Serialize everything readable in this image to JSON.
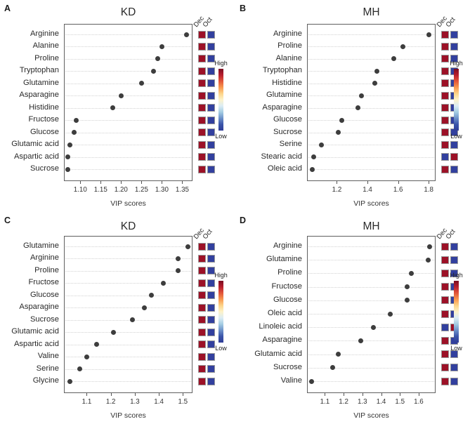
{
  "figure": {
    "background": "#ffffff",
    "colors": {
      "dot": "#3d3d3d",
      "grid": "#d2d2d2",
      "axis_box": "#606060",
      "text": "#222222",
      "cell_high": "#9c1127",
      "cell_low": "#32409e",
      "cell_border": "#9a9a9a"
    },
    "colorbar": {
      "high_label": "High",
      "low_label": "Low",
      "gradient": [
        "#7a0c21",
        "#b91f2e",
        "#e25639",
        "#f9984f",
        "#fdd488",
        "#fdf3c9",
        "#dcedf4",
        "#a5cde3",
        "#6d92c9",
        "#3b54a9",
        "#2f3d96"
      ]
    }
  },
  "chart_data": [
    {
      "type": "scatter",
      "panel": "A",
      "title": "KD",
      "xlabel": "VIP scores",
      "col_headers": [
        "Dec",
        "Oct"
      ],
      "legend_position": "right",
      "grid": "dotted-horizontal",
      "xlim": [
        1.06,
        1.375
      ],
      "x_ticks": [
        {
          "v": 1.1,
          "label": "1.10"
        },
        {
          "v": 1.15,
          "label": "1.15"
        },
        {
          "v": 1.2,
          "label": "1.20"
        },
        {
          "v": 1.25,
          "label": "1.25"
        },
        {
          "v": 1.3,
          "label": "1.30"
        },
        {
          "v": 1.35,
          "label": "1.35"
        }
      ],
      "rows": [
        {
          "name": "Arginine",
          "vip": 1.36,
          "dec": "high",
          "oct": "low"
        },
        {
          "name": "Alanine",
          "vip": 1.3,
          "dec": "high",
          "oct": "low"
        },
        {
          "name": "Proline",
          "vip": 1.29,
          "dec": "high",
          "oct": "low"
        },
        {
          "name": "Tryptophan",
          "vip": 1.28,
          "dec": "high",
          "oct": "low"
        },
        {
          "name": "Glutamine",
          "vip": 1.25,
          "dec": "high",
          "oct": "low"
        },
        {
          "name": "Asparagine",
          "vip": 1.2,
          "dec": "high",
          "oct": "low"
        },
        {
          "name": "Histidine",
          "vip": 1.18,
          "dec": "high",
          "oct": "low"
        },
        {
          "name": "Fructose",
          "vip": 1.09,
          "dec": "high",
          "oct": "low"
        },
        {
          "name": "Glucose",
          "vip": 1.085,
          "dec": "high",
          "oct": "low"
        },
        {
          "name": "Glutamic acid",
          "vip": 1.075,
          "dec": "high",
          "oct": "low"
        },
        {
          "name": "Aspartic acid",
          "vip": 1.07,
          "dec": "high",
          "oct": "low"
        },
        {
          "name": "Sucrose",
          "vip": 1.07,
          "dec": "high",
          "oct": "low"
        }
      ]
    },
    {
      "type": "scatter",
      "panel": "B",
      "title": "MH",
      "xlabel": "VIP scores",
      "col_headers": [
        "Dec",
        "Oct"
      ],
      "legend_position": "right",
      "grid": "dotted-horizontal",
      "xlim": [
        1.005,
        1.845
      ],
      "x_ticks": [
        {
          "v": 1.2,
          "label": "1.2"
        },
        {
          "v": 1.4,
          "label": "1.4"
        },
        {
          "v": 1.6,
          "label": "1.6"
        },
        {
          "v": 1.8,
          "label": "1.8"
        }
      ],
      "rows": [
        {
          "name": "Arginine",
          "vip": 1.8,
          "dec": "high",
          "oct": "low"
        },
        {
          "name": "Proline",
          "vip": 1.63,
          "dec": "high",
          "oct": "low"
        },
        {
          "name": "Alanine",
          "vip": 1.57,
          "dec": "high",
          "oct": "low"
        },
        {
          "name": "Tryptophan",
          "vip": 1.46,
          "dec": "high",
          "oct": "low"
        },
        {
          "name": "Histidine",
          "vip": 1.45,
          "dec": "high",
          "oct": "low"
        },
        {
          "name": "Glutamine",
          "vip": 1.36,
          "dec": "high",
          "oct": "low"
        },
        {
          "name": "Asparagine",
          "vip": 1.34,
          "dec": "high",
          "oct": "low"
        },
        {
          "name": "Glucose",
          "vip": 1.23,
          "dec": "high",
          "oct": "low"
        },
        {
          "name": "Sucrose",
          "vip": 1.21,
          "dec": "high",
          "oct": "low"
        },
        {
          "name": "Serine",
          "vip": 1.1,
          "dec": "high",
          "oct": "low"
        },
        {
          "name": "Stearic acid",
          "vip": 1.05,
          "dec": "low",
          "oct": "high"
        },
        {
          "name": "Oleic acid",
          "vip": 1.04,
          "dec": "high",
          "oct": "low"
        }
      ]
    },
    {
      "type": "scatter",
      "panel": "C",
      "title": "KD",
      "xlabel": "VIP scores",
      "col_headers": [
        "Dec",
        "Oct"
      ],
      "legend_position": "right",
      "grid": "dotted-horizontal",
      "xlim": [
        1.005,
        1.54
      ],
      "x_ticks": [
        {
          "v": 1.1,
          "label": "1.1"
        },
        {
          "v": 1.2,
          "label": "1.2"
        },
        {
          "v": 1.3,
          "label": "1.3"
        },
        {
          "v": 1.4,
          "label": "1.4"
        },
        {
          "v": 1.5,
          "label": "1.5"
        }
      ],
      "rows": [
        {
          "name": "Glutamine",
          "vip": 1.52,
          "dec": "high",
          "oct": "low"
        },
        {
          "name": "Arginine",
          "vip": 1.48,
          "dec": "high",
          "oct": "low"
        },
        {
          "name": "Proline",
          "vip": 1.48,
          "dec": "high",
          "oct": "low"
        },
        {
          "name": "Fructose",
          "vip": 1.42,
          "dec": "high",
          "oct": "low"
        },
        {
          "name": "Glucose",
          "vip": 1.37,
          "dec": "high",
          "oct": "low"
        },
        {
          "name": "Asparagine",
          "vip": 1.34,
          "dec": "high",
          "oct": "low"
        },
        {
          "name": "Sucrose",
          "vip": 1.29,
          "dec": "high",
          "oct": "low"
        },
        {
          "name": "Glutamic acid",
          "vip": 1.21,
          "dec": "high",
          "oct": "low"
        },
        {
          "name": "Aspartic acid",
          "vip": 1.14,
          "dec": "high",
          "oct": "low"
        },
        {
          "name": "Valine",
          "vip": 1.1,
          "dec": "high",
          "oct": "low"
        },
        {
          "name": "Serine",
          "vip": 1.07,
          "dec": "high",
          "oct": "low"
        },
        {
          "name": "Glycine",
          "vip": 1.03,
          "dec": "high",
          "oct": "low"
        }
      ]
    },
    {
      "type": "scatter",
      "panel": "D",
      "title": "MH",
      "xlabel": "VIP scores",
      "col_headers": [
        "Dec",
        "Oct"
      ],
      "legend_position": "right",
      "grid": "dotted-horizontal",
      "xlim": [
        1.005,
        1.69
      ],
      "x_ticks": [
        {
          "v": 1.1,
          "label": "1.1"
        },
        {
          "v": 1.2,
          "label": "1.2"
        },
        {
          "v": 1.3,
          "label": "1.3"
        },
        {
          "v": 1.4,
          "label": "1.4"
        },
        {
          "v": 1.5,
          "label": "1.5"
        },
        {
          "v": 1.6,
          "label": "1.6"
        }
      ],
      "rows": [
        {
          "name": "Arginine",
          "vip": 1.66,
          "dec": "high",
          "oct": "low"
        },
        {
          "name": "Glutamine",
          "vip": 1.65,
          "dec": "high",
          "oct": "low"
        },
        {
          "name": "Proline",
          "vip": 1.56,
          "dec": "high",
          "oct": "low"
        },
        {
          "name": "Fructose",
          "vip": 1.54,
          "dec": "high",
          "oct": "low"
        },
        {
          "name": "Glucose",
          "vip": 1.54,
          "dec": "high",
          "oct": "low"
        },
        {
          "name": "Oleic acid",
          "vip": 1.45,
          "dec": "high",
          "oct": "low"
        },
        {
          "name": "Linoleic acid",
          "vip": 1.36,
          "dec": "low",
          "oct": "high"
        },
        {
          "name": "Asparagine",
          "vip": 1.29,
          "dec": "high",
          "oct": "low"
        },
        {
          "name": "Glutamic acid",
          "vip": 1.17,
          "dec": "high",
          "oct": "low"
        },
        {
          "name": "Sucrose",
          "vip": 1.14,
          "dec": "high",
          "oct": "low"
        },
        {
          "name": "Valine",
          "vip": 1.03,
          "dec": "high",
          "oct": "low"
        }
      ]
    }
  ]
}
